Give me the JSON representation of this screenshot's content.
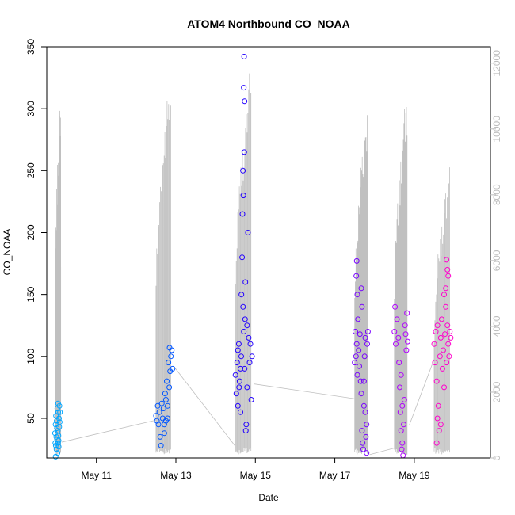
{
  "chart_data": {
    "type": "scatter",
    "title": "ATOM4 Northbound CO_NOAA",
    "xlabel": "Date",
    "ylabel": "CO_NOAA",
    "x_range": [
      "2016-05-09T18:00",
      "2016-05-20T22:00"
    ],
    "ylim": [
      18,
      350
    ],
    "y2lim": [
      0,
      12500
    ],
    "x_ticks": [
      {
        "date": "2016-05-11",
        "label": "May 11"
      },
      {
        "date": "2016-05-13",
        "label": "May 13"
      },
      {
        "date": "2016-05-15",
        "label": "May 15"
      },
      {
        "date": "2016-05-17",
        "label": "May 17"
      },
      {
        "date": "2016-05-19",
        "label": "May 19"
      }
    ],
    "y_ticks": [
      50,
      100,
      150,
      200,
      250,
      300,
      350
    ],
    "y2_ticks": [
      0,
      2000,
      4000,
      6000,
      8000,
      10000,
      12000
    ],
    "secondary_line_color": "#c0c0c0",
    "series": [
      {
        "color": "#00a6ff",
        "flights": [
          {
            "start": "2016-05-09T23:00",
            "end": "2016-05-10T02:00",
            "points": [
              [
                0,
                38
              ],
              [
                0.05,
                30
              ],
              [
                0.1,
                45
              ],
              [
                0.15,
                28
              ],
              [
                0.2,
                52
              ],
              [
                0.25,
                35
              ],
              [
                0.3,
                25
              ],
              [
                0.35,
                48
              ],
              [
                0.4,
                33
              ],
              [
                0.45,
                58
              ],
              [
                0.5,
                22
              ],
              [
                0.55,
                40
              ],
              [
                0.6,
                30
              ],
              [
                0.65,
                55
              ],
              [
                0.7,
                36
              ],
              [
                0.75,
                27
              ],
              [
                0.8,
                50
              ],
              [
                0.85,
                43
              ],
              [
                0.9,
                60
              ],
              [
                0.95,
                47
              ],
              [
                1,
                55
              ],
              [
                0.12,
                19
              ],
              [
                0.62,
                62
              ],
              [
                0.38,
                42
              ],
              [
                0.72,
                32
              ]
            ]
          }
        ]
      },
      {
        "color": "#0055ff",
        "flights": [
          {
            "start": "2016-05-12T12:00",
            "end": "2016-05-12T22:00",
            "points": [
              [
                0,
                52
              ],
              [
                0.05,
                48
              ],
              [
                0.1,
                60
              ],
              [
                0.15,
                45
              ],
              [
                0.2,
                55
              ],
              [
                0.25,
                35
              ],
              [
                0.3,
                28
              ],
              [
                0.35,
                62
              ],
              [
                0.4,
                50
              ],
              [
                0.45,
                58
              ],
              [
                0.5,
                45
              ],
              [
                0.55,
                70
              ],
              [
                0.6,
                65
              ],
              [
                0.65,
                80
              ],
              [
                0.7,
                60
              ],
              [
                0.75,
                95
              ],
              [
                0.8,
                75
              ],
              [
                0.85,
                88
              ],
              [
                0.9,
                100
              ],
              [
                0.95,
                105
              ],
              [
                1,
                90
              ],
              [
                0.82,
                107
              ],
              [
                0.5,
                38
              ],
              [
                0.7,
                50
              ],
              [
                0.6,
                48
              ]
            ]
          }
        ]
      },
      {
        "color": "#2200ff",
        "flights": [
          {
            "start": "2016-05-14T12:00",
            "end": "2016-05-14T22:00",
            "points": [
              [
                0,
                85
              ],
              [
                0.05,
                70
              ],
              [
                0.1,
                95
              ],
              [
                0.15,
                60
              ],
              [
                0.2,
                110
              ],
              [
                0.25,
                80
              ],
              [
                0.3,
                55
              ],
              [
                0.35,
                100
              ],
              [
                0.4,
                180
              ],
              [
                0.45,
                250
              ],
              [
                0.5,
                120
              ],
              [
                0.55,
                90
              ],
              [
                0.6,
                160
              ],
              [
                0.65,
                45
              ],
              [
                0.7,
                75
              ],
              [
                0.75,
                200
              ],
              [
                0.8,
                115
              ],
              [
                0.85,
                95
              ],
              [
                0.9,
                110
              ],
              [
                0.95,
                65
              ],
              [
                1,
                100
              ],
              [
                0.52,
                342
              ],
              [
                0.5,
                317
              ],
              [
                0.55,
                306
              ],
              [
                0.53,
                265
              ],
              [
                0.48,
                230
              ],
              [
                0.42,
                215
              ],
              [
                0.46,
                140
              ],
              [
                0.58,
                130
              ],
              [
                0.62,
                40
              ],
              [
                0.36,
                150
              ],
              [
                0.7,
                125
              ],
              [
                0.3,
                90
              ],
              [
                0.22,
                75
              ],
              [
                0.15,
                105
              ]
            ]
          }
        ]
      },
      {
        "color": "#7700ff",
        "flights": [
          {
            "start": "2016-05-17T12:00",
            "end": "2016-05-17T20:00",
            "points": [
              [
                0,
                95
              ],
              [
                0.05,
                120
              ],
              [
                0.1,
                100
              ],
              [
                0.15,
                110
              ],
              [
                0.2,
                85
              ],
              [
                0.25,
                130
              ],
              [
                0.3,
                105
              ],
              [
                0.35,
                92
              ],
              [
                0.4,
                118
              ],
              [
                0.45,
                80
              ],
              [
                0.5,
                70
              ],
              [
                0.55,
                40
              ],
              [
                0.6,
                30
              ],
              [
                0.65,
                25
              ],
              [
                0.7,
                60
              ],
              [
                0.75,
                100
              ],
              [
                0.8,
                115
              ],
              [
                0.85,
                35
              ],
              [
                0.9,
                45
              ],
              [
                0.95,
                110
              ],
              [
                1,
                120
              ],
              [
                0.15,
                177
              ],
              [
                0.12,
                165
              ],
              [
                0.2,
                150
              ],
              [
                0.5,
                155
              ],
              [
                0.55,
                140
              ],
              [
                0.7,
                80
              ],
              [
                0.8,
                55
              ],
              [
                0.9,
                22
              ]
            ]
          }
        ]
      },
      {
        "color": "#b000ff",
        "flights": [
          {
            "start": "2016-05-18T12:00",
            "end": "2016-05-18T20:00",
            "points": [
              [
                0,
                120
              ],
              [
                0.1,
                110
              ],
              [
                0.2,
                130
              ],
              [
                0.3,
                115
              ],
              [
                0.35,
                95
              ],
              [
                0.4,
                75
              ],
              [
                0.45,
                55
              ],
              [
                0.5,
                40
              ],
              [
                0.55,
                25
              ],
              [
                0.6,
                30
              ],
              [
                0.65,
                20
              ],
              [
                0.7,
                45
              ],
              [
                0.75,
                65
              ],
              [
                0.8,
                125
              ],
              [
                0.85,
                118
              ],
              [
                0.9,
                105
              ],
              [
                1,
                112
              ],
              [
                0.05,
                140
              ],
              [
                0.95,
                135
              ],
              [
                0.5,
                85
              ],
              [
                0.6,
                60
              ]
            ]
          }
        ]
      },
      {
        "color": "#ff00cc",
        "flights": [
          {
            "start": "2016-05-19T12:00",
            "end": "2016-05-19T22:00",
            "points": [
              [
                0,
                110
              ],
              [
                0.05,
                95
              ],
              [
                0.1,
                120
              ],
              [
                0.15,
                80
              ],
              [
                0.2,
                125
              ],
              [
                0.25,
                60
              ],
              [
                0.3,
                40
              ],
              [
                0.35,
                100
              ],
              [
                0.4,
                115
              ],
              [
                0.45,
                130
              ],
              [
                0.5,
                90
              ],
              [
                0.55,
                105
              ],
              [
                0.6,
                75
              ],
              [
                0.65,
                118
              ],
              [
                0.7,
                140
              ],
              [
                0.75,
                95
              ],
              [
                0.8,
                125
              ],
              [
                0.85,
                110
              ],
              [
                0.9,
                100
              ],
              [
                0.95,
                120
              ],
              [
                1,
                115
              ],
              [
                0.75,
                178
              ],
              [
                0.8,
                170
              ],
              [
                0.85,
                165
              ],
              [
                0.7,
                155
              ],
              [
                0.6,
                150
              ],
              [
                0.15,
                30
              ],
              [
                0.2,
                50
              ],
              [
                0.4,
                45
              ]
            ]
          }
        ]
      }
    ],
    "secondary_flights": [
      {
        "start": "2016-05-09T23:00",
        "end": "2016-05-10T03:00",
        "peak": 11400,
        "tail": [
          [
            0.83,
            650
          ],
          [
            0.86,
            5800
          ]
        ]
      },
      {
        "start": "2016-05-12T12:00",
        "end": "2016-05-12T22:30",
        "peak": 12000,
        "tail": []
      },
      {
        "start": "2016-05-14T12:00",
        "end": "2016-05-14T23:00",
        "peak": 12200,
        "tail": []
      },
      {
        "start": "2016-05-17T12:00",
        "end": "2016-05-17T21:00",
        "peak": 11000,
        "tail": []
      },
      {
        "start": "2016-05-18T12:00",
        "end": "2016-05-18T21:00",
        "peak": 11400,
        "tail": []
      },
      {
        "start": "2016-05-19T12:00",
        "end": "2016-05-19T23:00",
        "peak": 9000,
        "tail": []
      }
    ],
    "secondary_connectors": [
      [
        [
          "2016-05-10T03:00",
          480
        ],
        [
          "2016-05-12T12:00",
          1150
        ]
      ],
      [
        [
          "2016-05-12T22:30",
          2800
        ],
        [
          "2016-05-14T12:00",
          350
        ]
      ],
      [
        [
          "2016-05-14T23:00",
          2250
        ],
        [
          "2016-05-17T12:00",
          1800
        ]
      ],
      [
        [
          "2016-05-17T21:00",
          100
        ],
        [
          "2016-05-18T12:00",
          300
        ]
      ],
      [
        [
          "2016-05-18T21:00",
          1000
        ],
        [
          "2016-05-19T12:00",
          3000
        ]
      ]
    ]
  }
}
